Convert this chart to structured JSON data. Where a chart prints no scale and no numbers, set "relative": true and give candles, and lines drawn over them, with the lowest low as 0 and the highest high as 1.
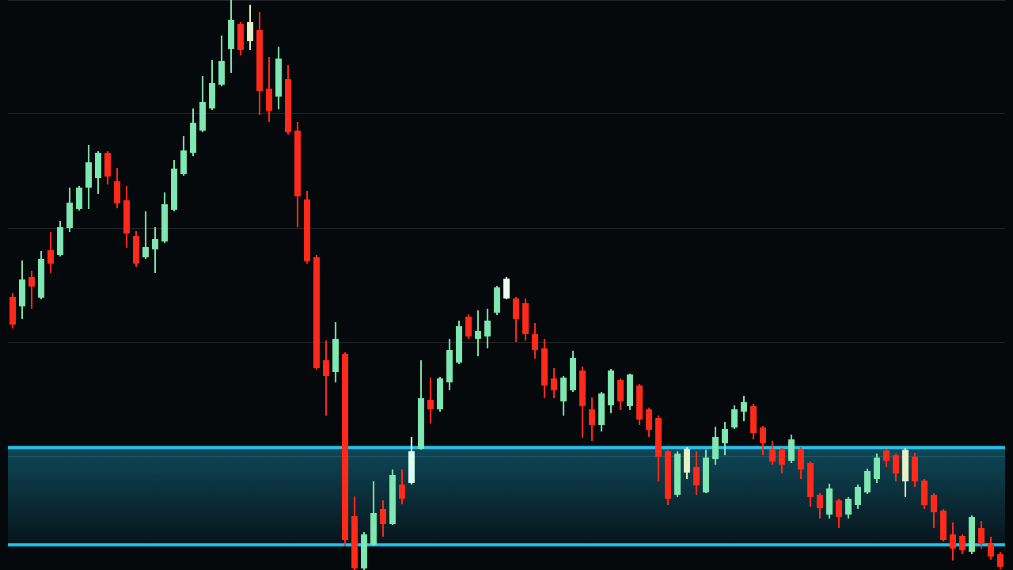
{
  "chart_data": {
    "type": "candlestick",
    "relative": true,
    "grid": "y",
    "categories": [
      null,
      null,
      null,
      null,
      null,
      null,
      null,
      null,
      null,
      null,
      null,
      null,
      null,
      null,
      null,
      null,
      null,
      null,
      null,
      null,
      null,
      null,
      null,
      null,
      null,
      null,
      null,
      null,
      null,
      null,
      null,
      null,
      null,
      null,
      null,
      null,
      null,
      null,
      null,
      null,
      null,
      null,
      null,
      null,
      null,
      null,
      null,
      null,
      null,
      null,
      null,
      null,
      null,
      null,
      null,
      null,
      null,
      null,
      null,
      null,
      null,
      null,
      null,
      null,
      null,
      null,
      null,
      null,
      null,
      null,
      null,
      null,
      null,
      null,
      null,
      null,
      null,
      null,
      null,
      null,
      null,
      null,
      null,
      null,
      null,
      null,
      null,
      null,
      null,
      null,
      null,
      null,
      null,
      null,
      null,
      null,
      null,
      null,
      null,
      null,
      null,
      null,
      null,
      null,
      null
    ],
    "ohlc": [
      [
        0.479,
        0.486,
        0.424,
        0.431
      ],
      [
        0.462,
        0.543,
        0.44,
        0.51
      ],
      [
        0.514,
        0.525,
        0.458,
        0.497
      ],
      [
        0.478,
        0.56,
        0.475,
        0.546
      ],
      [
        0.561,
        0.593,
        0.521,
        0.538
      ],
      [
        0.553,
        0.613,
        0.55,
        0.601
      ],
      [
        0.6,
        0.671,
        0.593,
        0.644
      ],
      [
        0.633,
        0.674,
        0.631,
        0.671
      ],
      [
        0.671,
        0.746,
        0.633,
        0.715
      ],
      [
        0.688,
        0.735,
        0.66,
        0.732
      ],
      [
        0.732,
        0.735,
        0.676,
        0.69
      ],
      [
        0.682,
        0.706,
        0.635,
        0.643
      ],
      [
        0.649,
        0.674,
        0.565,
        0.59
      ],
      [
        0.586,
        0.594,
        0.532,
        0.538
      ],
      [
        0.549,
        0.629,
        0.546,
        0.567
      ],
      [
        0.563,
        0.601,
        0.521,
        0.581
      ],
      [
        0.576,
        0.663,
        0.574,
        0.642
      ],
      [
        0.632,
        0.719,
        0.629,
        0.704
      ],
      [
        0.694,
        0.761,
        0.692,
        0.736
      ],
      [
        0.732,
        0.81,
        0.726,
        0.785
      ],
      [
        0.771,
        0.867,
        0.768,
        0.821
      ],
      [
        0.81,
        0.894,
        0.807,
        0.854
      ],
      [
        0.851,
        0.938,
        0.849,
        0.893
      ],
      [
        0.914,
        1,
        0.872,
        0.965
      ],
      [
        0.958,
        0.961,
        0.903,
        0.913
      ],
      [
        0.928,
        0.992,
        0.913,
        0.961
      ],
      [
        0.947,
        0.979,
        0.799,
        0.84
      ],
      [
        0.844,
        0.9,
        0.786,
        0.806
      ],
      [
        0.831,
        0.918,
        0.808,
        0.897
      ],
      [
        0.861,
        0.886,
        0.764,
        0.768
      ],
      [
        0.771,
        0.786,
        0.601,
        0.656
      ],
      [
        0.65,
        0.665,
        0.538,
        0.542
      ],
      [
        0.549,
        0.553,
        0.351,
        0.354
      ],
      [
        0.368,
        0.403,
        0.271,
        0.34
      ],
      [
        0.347,
        0.435,
        0.329,
        0.406
      ],
      [
        0.379,
        0.382,
        0.042,
        0.053
      ],
      [
        0.094,
        0.129,
        0,
        0.003
      ],
      [
        0.003,
        0.067,
        0,
        0.063
      ],
      [
        0.044,
        0.156,
        0.042,
        0.1
      ],
      [
        0.107,
        0.122,
        0.058,
        0.081
      ],
      [
        0.081,
        0.176,
        0.079,
        0.167
      ],
      [
        0.15,
        0.176,
        0.115,
        0.125
      ],
      [
        0.153,
        0.233,
        0.15,
        0.208
      ],
      [
        0.213,
        0.368,
        0.211,
        0.301
      ],
      [
        0.299,
        0.338,
        0.257,
        0.282
      ],
      [
        0.282,
        0.339,
        0.278,
        0.336
      ],
      [
        0.329,
        0.406,
        0.315,
        0.386
      ],
      [
        0.364,
        0.438,
        0.361,
        0.428
      ],
      [
        0.444,
        0.449,
        0.406,
        0.41
      ],
      [
        0.406,
        0.456,
        0.375,
        0.419
      ],
      [
        0.41,
        0.458,
        0.389,
        0.438
      ],
      [
        0.451,
        0.499,
        0.447,
        0.496
      ],
      [
        0.476,
        0.514,
        0.475,
        0.511
      ],
      [
        0.476,
        0.479,
        0.4,
        0.44
      ],
      [
        0.468,
        0.476,
        0.403,
        0.414
      ],
      [
        0.414,
        0.433,
        0.371,
        0.386
      ],
      [
        0.389,
        0.406,
        0.301,
        0.324
      ],
      [
        0.336,
        0.354,
        0.301,
        0.315
      ],
      [
        0.296,
        0.34,
        0.271,
        0.338
      ],
      [
        0.315,
        0.385,
        0.313,
        0.372
      ],
      [
        0.35,
        0.357,
        0.232,
        0.288
      ],
      [
        0.282,
        0.303,
        0.226,
        0.254
      ],
      [
        0.254,
        0.313,
        0.243,
        0.31
      ],
      [
        0.289,
        0.353,
        0.275,
        0.35
      ],
      [
        0.333,
        0.336,
        0.281,
        0.296
      ],
      [
        0.288,
        0.344,
        0.281,
        0.343
      ],
      [
        0.324,
        0.326,
        0.254,
        0.264
      ],
      [
        0.282,
        0.285,
        0.233,
        0.246
      ],
      [
        0.267,
        0.271,
        0.156,
        0.199
      ],
      [
        0.208,
        0.211,
        0.114,
        0.125
      ],
      [
        0.132,
        0.208,
        0.128,
        0.204
      ],
      [
        0.171,
        0.215,
        0.16,
        0.213
      ],
      [
        0.181,
        0.208,
        0.132,
        0.149
      ],
      [
        0.136,
        0.211,
        0.135,
        0.197
      ],
      [
        0.194,
        0.251,
        0.185,
        0.233
      ],
      [
        0.222,
        0.26,
        0.201,
        0.247
      ],
      [
        0.25,
        0.289,
        0.247,
        0.282
      ],
      [
        0.278,
        0.306,
        0.261,
        0.294
      ],
      [
        0.288,
        0.292,
        0.229,
        0.24
      ],
      [
        0.25,
        0.253,
        0.201,
        0.222
      ],
      [
        0.213,
        0.226,
        0.185,
        0.19
      ],
      [
        0.211,
        0.214,
        0.169,
        0.185
      ],
      [
        0.192,
        0.238,
        0.188,
        0.229
      ],
      [
        0.213,
        0.215,
        0.16,
        0.176
      ],
      [
        0.188,
        0.19,
        0.111,
        0.128
      ],
      [
        0.132,
        0.135,
        0.09,
        0.108
      ],
      [
        0.097,
        0.151,
        0.09,
        0.143
      ],
      [
        0.122,
        0.125,
        0.074,
        0.093
      ],
      [
        0.097,
        0.128,
        0.09,
        0.125
      ],
      [
        0.114,
        0.15,
        0.107,
        0.146
      ],
      [
        0.136,
        0.178,
        0.133,
        0.174
      ],
      [
        0.16,
        0.204,
        0.153,
        0.197
      ],
      [
        0.21,
        0.213,
        0.181,
        0.192
      ],
      [
        0.201,
        0.204,
        0.156,
        0.169
      ],
      [
        0.156,
        0.214,
        0.128,
        0.211
      ],
      [
        0.199,
        0.206,
        0.146,
        0.156
      ],
      [
        0.157,
        0.16,
        0.107,
        0.114
      ],
      [
        0.132,
        0.135,
        0.074,
        0.101
      ],
      [
        0.104,
        0.107,
        0.05,
        0.053
      ],
      [
        0.063,
        0.083,
        0.017,
        0.038
      ],
      [
        0.06,
        0.063,
        0.028,
        0.035
      ],
      [
        0.032,
        0.096,
        0.028,
        0.093
      ],
      [
        0.074,
        0.086,
        0.038,
        0.046
      ],
      [
        0.046,
        0.058,
        0.018,
        0.024
      ],
      [
        0.028,
        0.032,
        0.001,
        0.006
      ]
    ],
    "colors": [
      "#ff2a1a",
      "#7fe8b2",
      "#ff2a1a",
      "#7fe8b2",
      "#ff2a1a",
      "#7fe8b2",
      "#7fe8b2",
      "#7fe8b2",
      "#7fe8b2",
      "#7fe8b2",
      "#ff2a1a",
      "#ff2a1a",
      "#ff2a1a",
      "#ff2a1a",
      "#7fe8b2",
      "#7fe8b2",
      "#7fe8b2",
      "#7fe8b2",
      "#7fe8b2",
      "#7fe8b2",
      "#7fe8b2",
      "#7fe8b2",
      "#7fe8b2",
      "#7fe8b2",
      "#ff2a1a",
      "#e8f0c8",
      "#ff2a1a",
      "#ff2a1a",
      "#7fe8b2",
      "#ff2a1a",
      "#ff2a1a",
      "#ff2a1a",
      "#ff2a1a",
      "#ff2a1a",
      "#7fe8b2",
      "#ff2a1a",
      "#ff2a1a",
      "#7fe8b2",
      "#7fe8b2",
      "#ff2a1a",
      "#7fe8b2",
      "#ff2a1a",
      "#d8fff0",
      "#7fe8b2",
      "#ff2a1a",
      "#7fe8b2",
      "#7fe8b2",
      "#7fe8b2",
      "#ff2a1a",
      "#7fe8b2",
      "#7fe8b2",
      "#7fe8b2",
      "#e8fff0",
      "#ff2a1a",
      "#ff2a1a",
      "#ff2a1a",
      "#ff2a1a",
      "#ff2a1a",
      "#7fe8b2",
      "#7fe8b2",
      "#ff2a1a",
      "#ff2a1a",
      "#7fe8b2",
      "#7fe8b2",
      "#ff2a1a",
      "#7fe8b2",
      "#ff2a1a",
      "#ff2a1a",
      "#ff2a1a",
      "#ff2a1a",
      "#7fe8b2",
      "#e8f0c8",
      "#ff2a1a",
      "#7fe8b2",
      "#7fe8b2",
      "#7fe8b2",
      "#7fe8b2",
      "#7fe8b2",
      "#ff2a1a",
      "#ff2a1a",
      "#ff2a1a",
      "#ff2a1a",
      "#7fe8b2",
      "#ff2a1a",
      "#ff2a1a",
      "#ff2a1a",
      "#7fe8b2",
      "#ff2a1a",
      "#7fe8b2",
      "#7fe8b2",
      "#7fe8b2",
      "#7fe8b2",
      "#ff2a1a",
      "#ff2a1a",
      "#e8f0c8",
      "#ff2a1a",
      "#ff2a1a",
      "#ff2a1a",
      "#ff2a1a",
      "#ff2a1a",
      "#ff2a1a",
      "#7fe8b2",
      "#ff2a1a",
      "#ff2a1a",
      "#ff2a1a"
    ],
    "bands": [
      {
        "axis": "y",
        "from": 0.044,
        "to": 0.215,
        "color": "#22c4f0"
      }
    ],
    "ref_lines": [
      {
        "axis": "y",
        "value": 0.044,
        "color": "#22c4f0"
      },
      {
        "axis": "y",
        "value": 0.215,
        "color": "#22c4f0"
      }
    ]
  }
}
